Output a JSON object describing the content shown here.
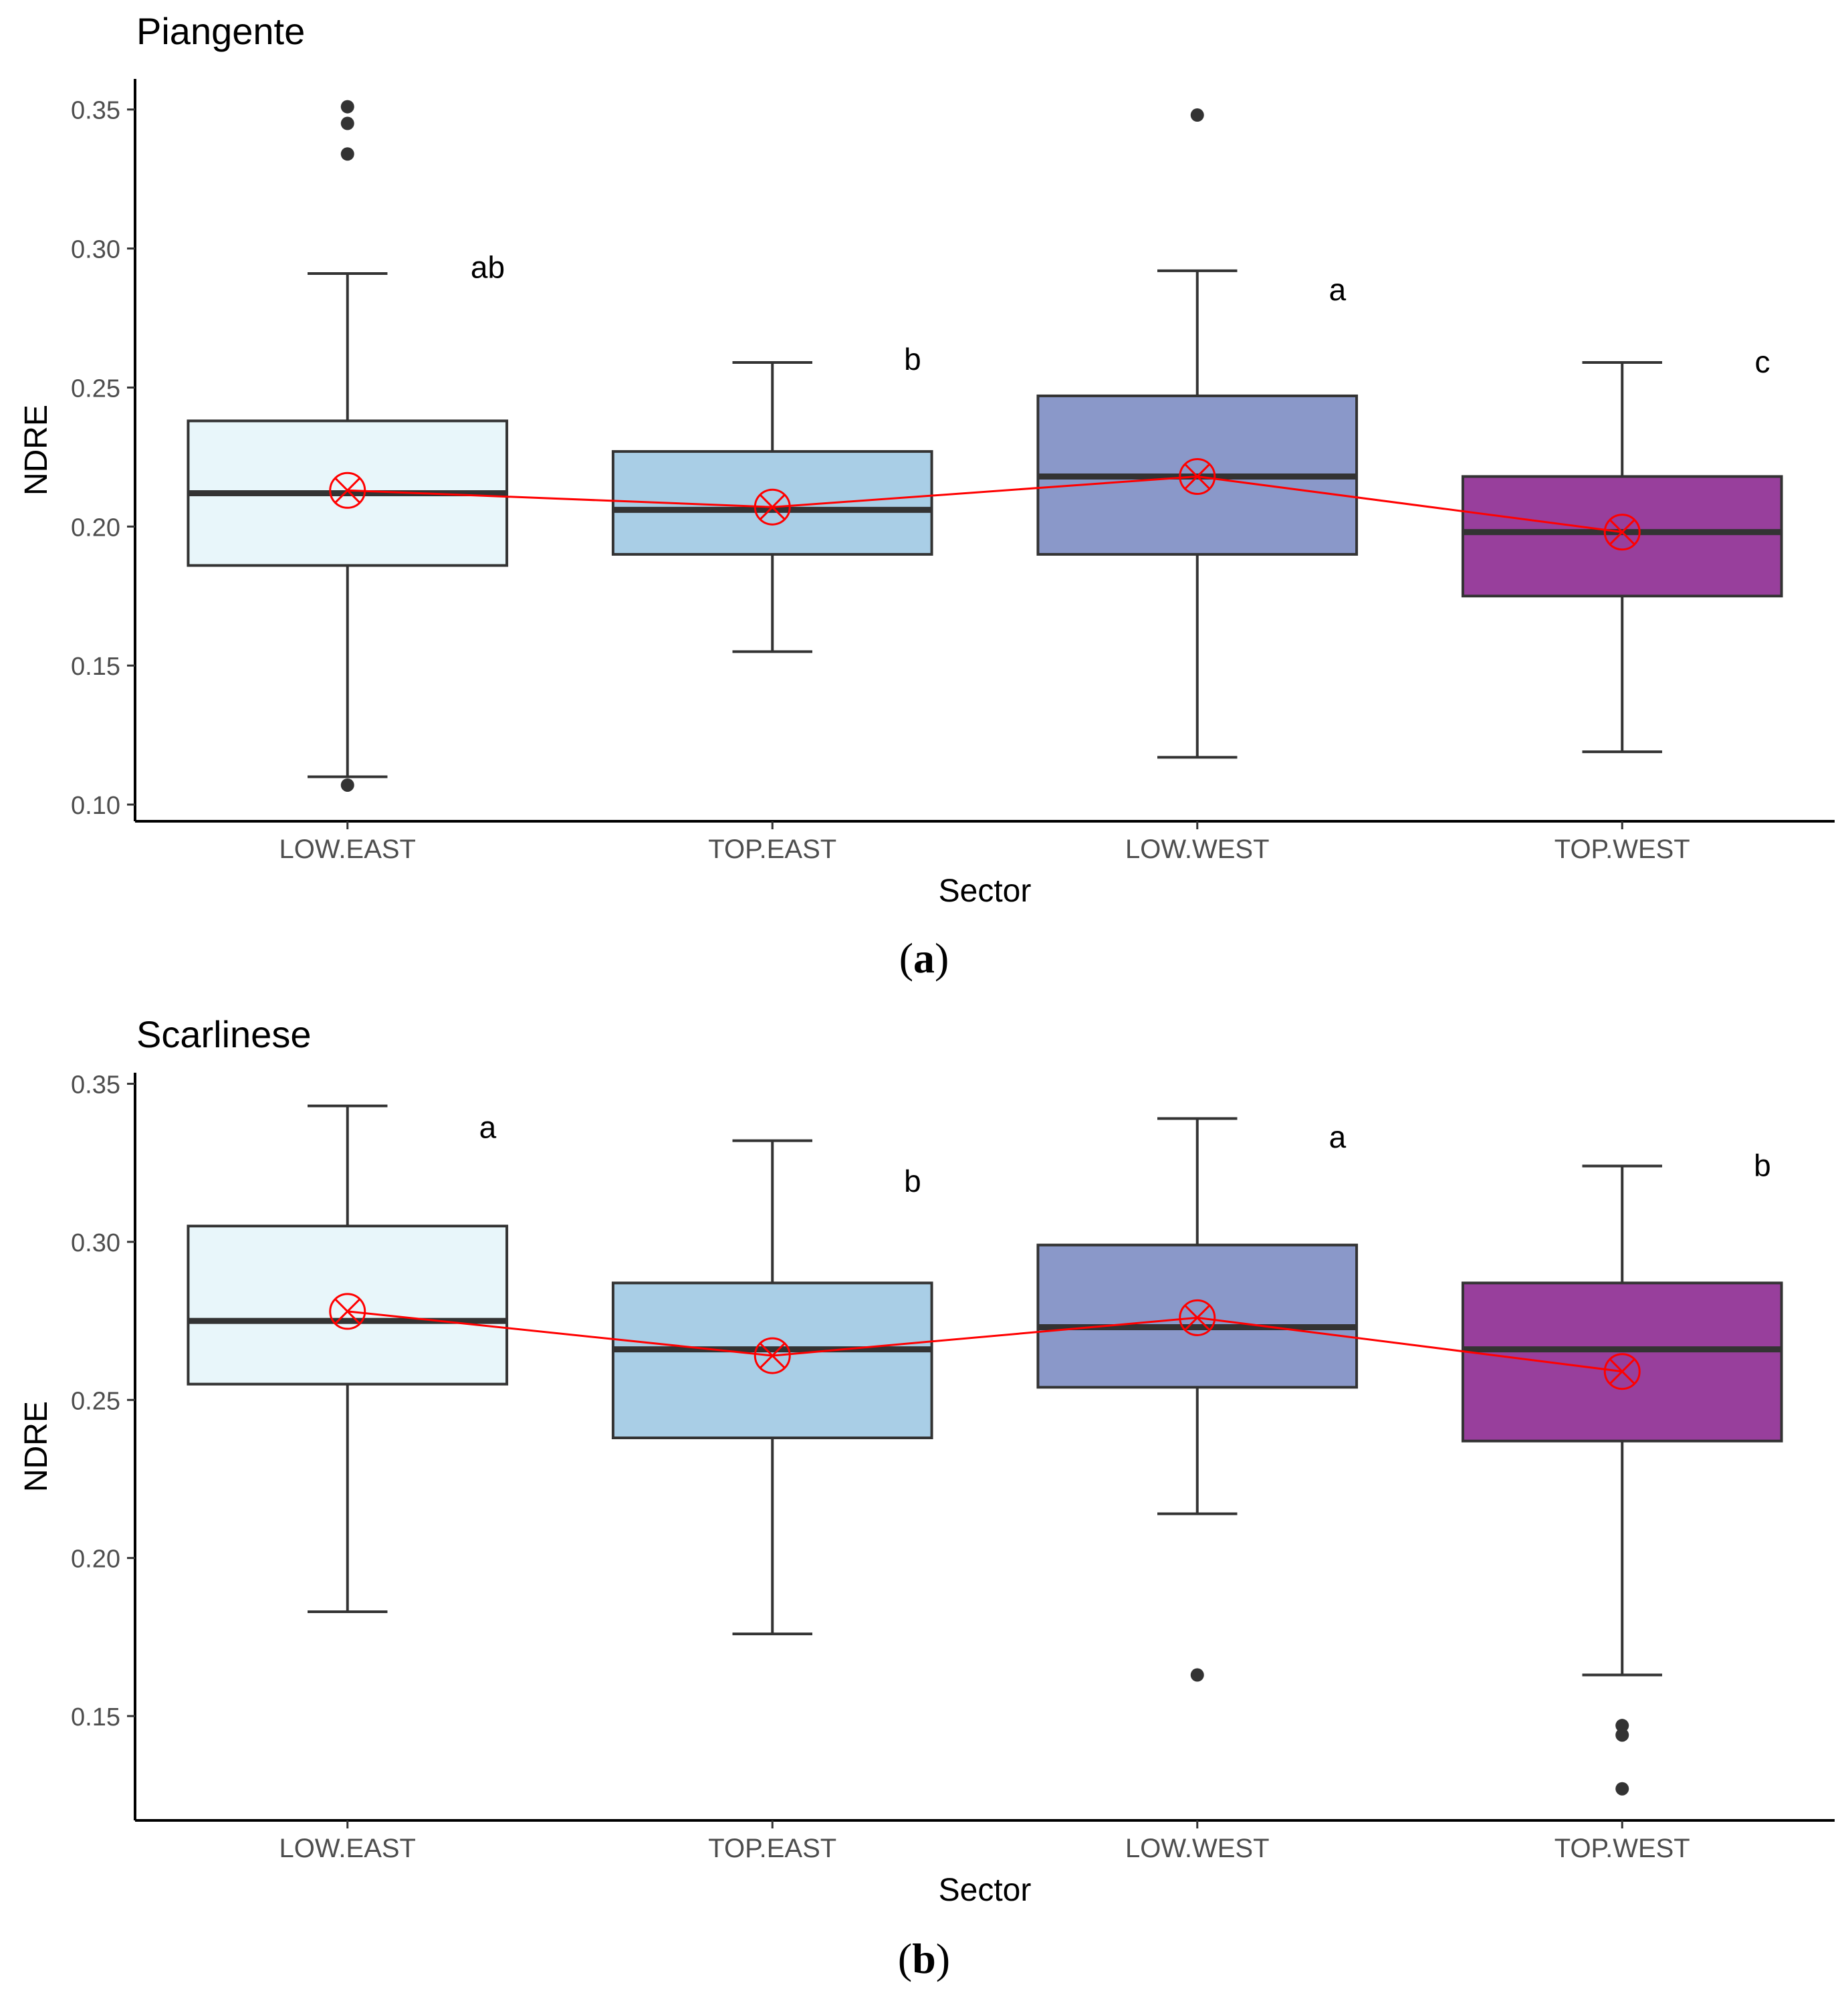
{
  "chart_data": [
    {
      "type": "box",
      "title": "Piangente",
      "panel_label": "a",
      "xlabel": "Sector",
      "ylabel": "NDRE",
      "ylim": [
        0.094,
        0.361
      ],
      "yticks": [
        0.1,
        0.15,
        0.2,
        0.25,
        0.3,
        0.35
      ],
      "ytick_labels": [
        "0.10",
        "0.15",
        "0.20",
        "0.25",
        "0.30",
        "0.35"
      ],
      "categories": [
        "LOW.EAST",
        "TOP.EAST",
        "LOW.WEST",
        "TOP.WEST"
      ],
      "box_colors": [
        "#e8f6fa",
        "#a9cee6",
        "#8a98c9",
        "#983f9c"
      ],
      "mean_line_color": "#ff0000",
      "boxes": [
        {
          "category": "LOW.EAST",
          "whisker_low": 0.11,
          "q1": 0.186,
          "median": 0.212,
          "q3": 0.238,
          "whisker_high": 0.291,
          "mean": 0.213,
          "outliers": [
            0.351,
            0.345,
            0.334,
            0.107
          ],
          "letter": "ab",
          "letter_y": 0.293
        },
        {
          "category": "TOP.EAST",
          "whisker_low": 0.155,
          "q1": 0.19,
          "median": 0.206,
          "q3": 0.227,
          "whisker_high": 0.259,
          "mean": 0.207,
          "outliers": [],
          "letter": "b",
          "letter_y": 0.26
        },
        {
          "category": "LOW.WEST",
          "whisker_low": 0.117,
          "q1": 0.19,
          "median": 0.218,
          "q3": 0.247,
          "whisker_high": 0.292,
          "mean": 0.218,
          "outliers": [
            0.348
          ],
          "letter": "a",
          "letter_y": 0.285
        },
        {
          "category": "TOP.WEST",
          "whisker_low": 0.119,
          "q1": 0.175,
          "median": 0.198,
          "q3": 0.218,
          "whisker_high": 0.259,
          "mean": 0.198,
          "outliers": [],
          "letter": "c",
          "letter_y": 0.259
        }
      ]
    },
    {
      "type": "box",
      "title": "Scarlinese",
      "panel_label": "b",
      "xlabel": "Sector",
      "ylabel": "NDRE",
      "ylim": [
        0.117,
        0.3535
      ],
      "yticks": [
        0.15,
        0.2,
        0.25,
        0.3,
        0.35
      ],
      "ytick_labels": [
        "0.15",
        "0.20",
        "0.25",
        "0.30",
        "0.35"
      ],
      "categories": [
        "LOW.EAST",
        "TOP.EAST",
        "LOW.WEST",
        "TOP.WEST"
      ],
      "box_colors": [
        "#e8f6fa",
        "#a9cee6",
        "#8a98c9",
        "#983f9c"
      ],
      "mean_line_color": "#ff0000",
      "boxes": [
        {
          "category": "LOW.EAST",
          "whisker_low": 0.183,
          "q1": 0.255,
          "median": 0.275,
          "q3": 0.305,
          "whisker_high": 0.343,
          "mean": 0.278,
          "outliers": [],
          "letter": "a",
          "letter_y": 0.336
        },
        {
          "category": "TOP.EAST",
          "whisker_low": 0.176,
          "q1": 0.238,
          "median": 0.266,
          "q3": 0.287,
          "whisker_high": 0.332,
          "mean": 0.264,
          "outliers": [],
          "letter": "b",
          "letter_y": 0.319
        },
        {
          "category": "LOW.WEST",
          "whisker_low": 0.214,
          "q1": 0.254,
          "median": 0.273,
          "q3": 0.299,
          "whisker_high": 0.339,
          "mean": 0.276,
          "outliers": [
            0.163
          ],
          "letter": "a",
          "letter_y": 0.333
        },
        {
          "category": "TOP.WEST",
          "whisker_low": 0.163,
          "q1": 0.237,
          "median": 0.266,
          "q3": 0.287,
          "whisker_high": 0.324,
          "mean": 0.259,
          "outliers": [
            0.147,
            0.144,
            0.127
          ],
          "letter": "b",
          "letter_y": 0.324
        }
      ]
    }
  ]
}
